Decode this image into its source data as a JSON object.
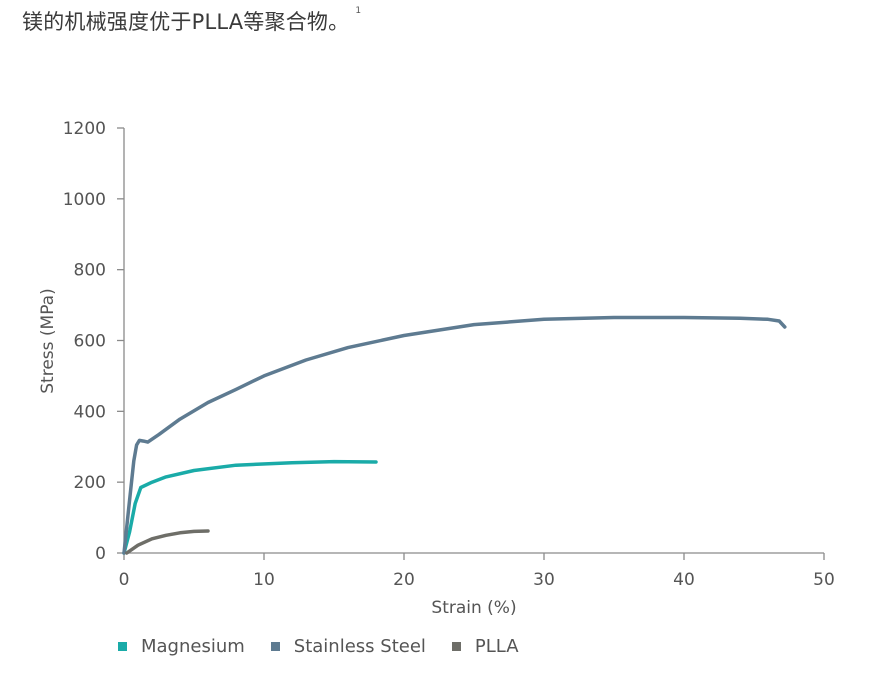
{
  "heading": {
    "text": "镁的机械强度优于PLLA等聚合物。",
    "footnote": "1"
  },
  "chart_data": {
    "type": "line",
    "title": "",
    "xlabel": "Strain (%)",
    "ylabel": "Stress (MPa)",
    "xlim": [
      0,
      50
    ],
    "ylim": [
      0,
      1200
    ],
    "xticks": [
      0,
      10,
      20,
      30,
      40,
      50
    ],
    "yticks": [
      0,
      200,
      400,
      600,
      800,
      1000,
      1200
    ],
    "grid": false,
    "legend_position": "bottom-left",
    "series": [
      {
        "name": "Magnesium",
        "color": "#1aaba8",
        "points": [
          [
            0,
            0
          ],
          [
            0.4,
            60
          ],
          [
            0.8,
            140
          ],
          [
            1.2,
            185
          ],
          [
            2,
            200
          ],
          [
            3,
            215
          ],
          [
            5,
            233
          ],
          [
            8,
            248
          ],
          [
            12,
            255
          ],
          [
            15,
            258
          ],
          [
            18,
            257
          ]
        ]
      },
      {
        "name": "Stainless Steel",
        "color": "#5e7b91",
        "points": [
          [
            0,
            0
          ],
          [
            0.4,
            150
          ],
          [
            0.7,
            260
          ],
          [
            0.9,
            305
          ],
          [
            1.1,
            318
          ],
          [
            1.4,
            316
          ],
          [
            1.7,
            313
          ],
          [
            2.5,
            335
          ],
          [
            4,
            378
          ],
          [
            6,
            425
          ],
          [
            8,
            462
          ],
          [
            10,
            500
          ],
          [
            13,
            545
          ],
          [
            16,
            580
          ],
          [
            20,
            614
          ],
          [
            25,
            645
          ],
          [
            30,
            660
          ],
          [
            35,
            665
          ],
          [
            40,
            665
          ],
          [
            44,
            663
          ],
          [
            46,
            660
          ],
          [
            46.8,
            655
          ],
          [
            47.2,
            638
          ]
        ]
      },
      {
        "name": "PLLA",
        "color": "#6e6e68",
        "points": [
          [
            0.2,
            0
          ],
          [
            1,
            22
          ],
          [
            2,
            40
          ],
          [
            3,
            50
          ],
          [
            4,
            57
          ],
          [
            5,
            61
          ],
          [
            6,
            62
          ]
        ]
      }
    ]
  }
}
